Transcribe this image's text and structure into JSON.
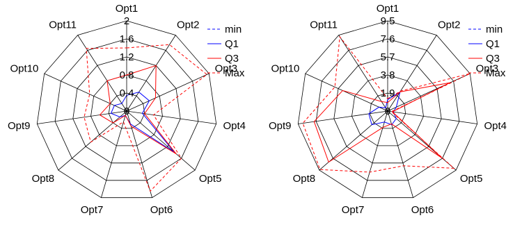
{
  "chart_data": [
    {
      "type": "radar",
      "categories": [
        "Opt1",
        "Opt2",
        "Opt3",
        "Opt4",
        "Opt5",
        "Opt6",
        "Opt7",
        "Opt8",
        "Opt9",
        "Opt10",
        "Opt11"
      ],
      "r_ticks": [
        "0",
        "0.4",
        "0.8",
        "1.2",
        "1.6",
        "2"
      ],
      "r_max": 2,
      "grid": true,
      "legend_position": "top-right",
      "series": [
        {
          "name": "min",
          "color": "#0000ff",
          "dashed": true,
          "values": [
            0,
            0,
            0,
            0,
            0,
            0,
            0,
            0,
            0,
            0,
            0
          ]
        },
        {
          "name": "Q1",
          "color": "#0000ff",
          "dashed": false,
          "values": [
            0.35,
            0.5,
            0.55,
            0.35,
            1.4,
            0.3,
            0.1,
            0.2,
            0.35,
            0.3,
            0.2
          ]
        },
        {
          "name": "Q3",
          "color": "#ff0000",
          "dashed": false,
          "values": [
            0.8,
            1.2,
            0.7,
            0.4,
            1.45,
            0.35,
            0.1,
            0.4,
            0.6,
            0.4,
            0.8
          ]
        },
        {
          "name": "Max",
          "color": "#ff0000",
          "dashed": true,
          "values": [
            1.4,
            1.75,
            1.95,
            0.6,
            1.6,
            1.85,
            0.25,
            1.05,
            0.95,
            0.9,
            1.65
          ]
        }
      ]
    },
    {
      "type": "radar",
      "categories": [
        "Opt1",
        "Opt2",
        "Opt3",
        "Opt4",
        "Opt5",
        "Opt6",
        "Opt7",
        "Opt8",
        "Opt9",
        "Opt10",
        "Opt11"
      ],
      "r_ticks": [
        "0",
        "1.9",
        "3.8",
        "5.7",
        "7.6",
        "9.5"
      ],
      "r_max": 9.5,
      "grid": true,
      "legend_position": "top-right",
      "series": [
        {
          "name": "min",
          "color": "#0000ff",
          "dashed": true,
          "values": [
            0,
            0,
            0,
            0,
            0,
            0,
            0,
            0,
            0,
            0,
            0
          ]
        },
        {
          "name": "Q1",
          "color": "#0000ff",
          "dashed": false,
          "values": [
            1.2,
            2.4,
            1.0,
            0.6,
            1.2,
            1.5,
            1.2,
            2.2,
            2.0,
            1.0,
            0.4
          ]
        },
        {
          "name": "Q3",
          "color": "#ff0000",
          "dashed": false,
          "values": [
            0.9,
            2.4,
            7.2,
            0.5,
            7.6,
            1.4,
            1.8,
            8.2,
            7.8,
            5.2,
            1.2
          ]
        },
        {
          "name": "Max",
          "color": "#ff0000",
          "dashed": true,
          "values": [
            1.3,
            2.5,
            9.5,
            0.4,
            9.2,
            6.0,
            6.7,
            9.4,
            9.0,
            6.1,
            9.3
          ]
        }
      ]
    }
  ]
}
